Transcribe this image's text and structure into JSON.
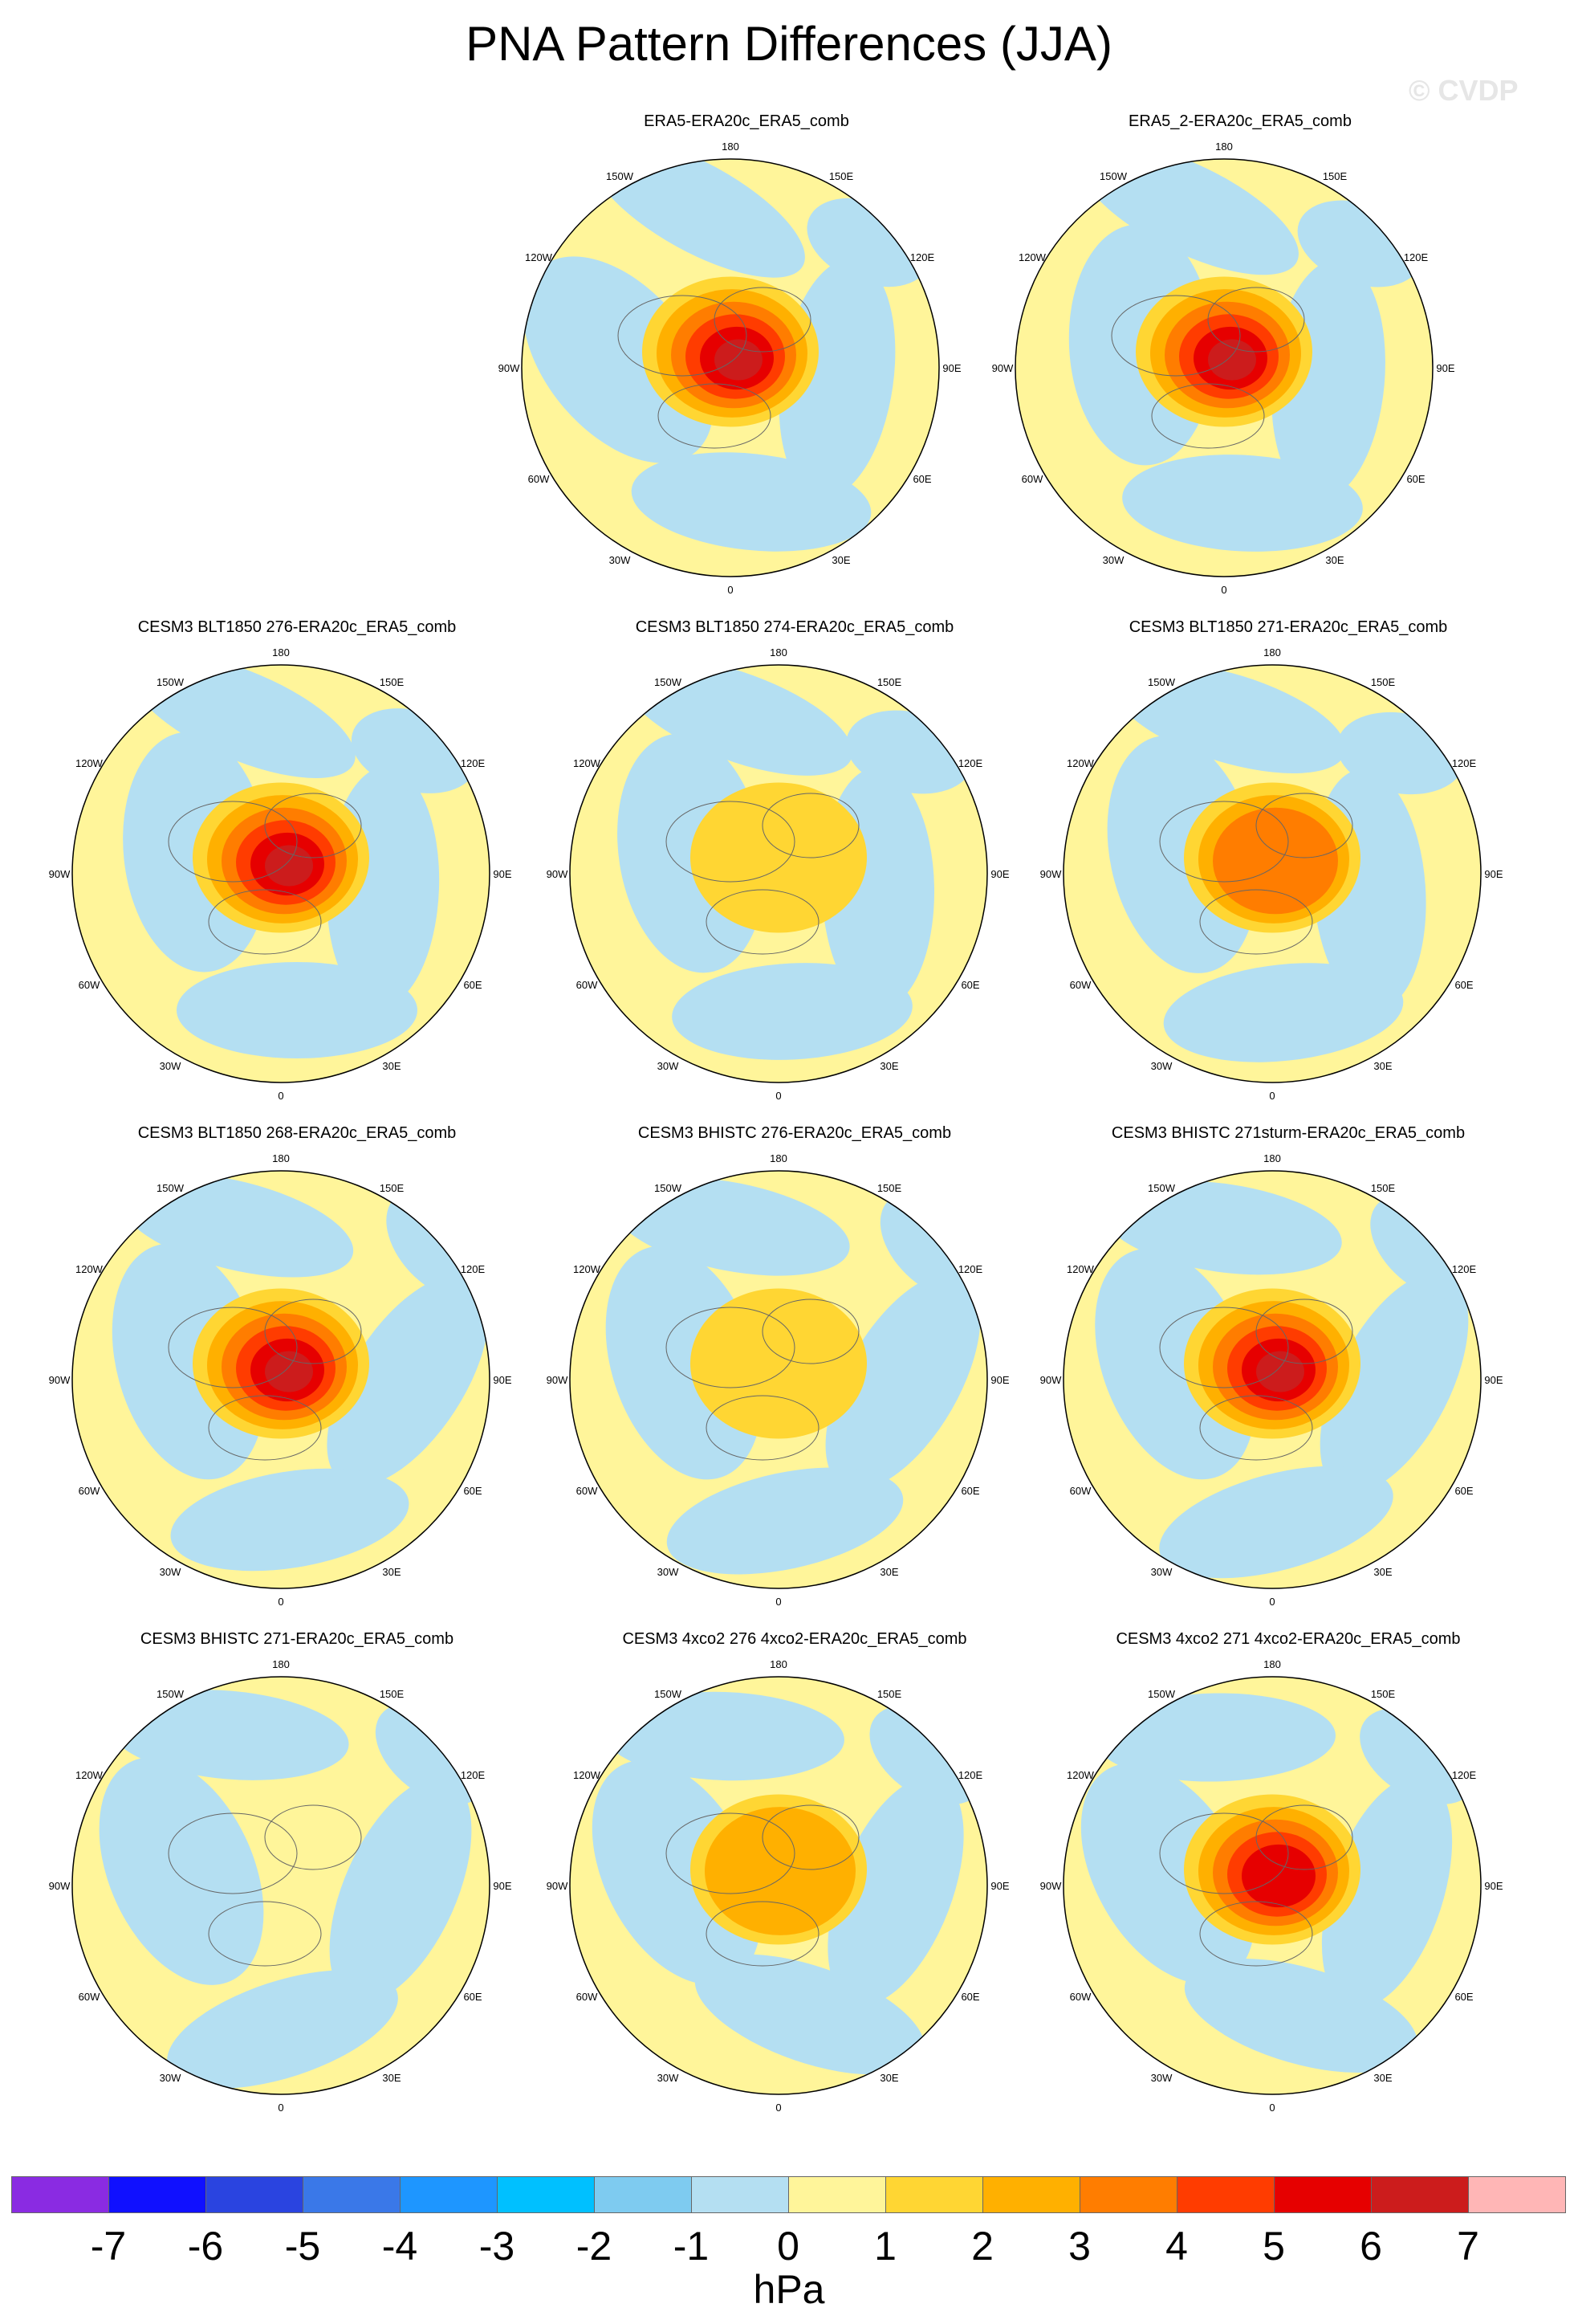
{
  "title": "PNA Pattern Differences (JJA)",
  "watermark": "© CVDP",
  "chart_data": {
    "type": "heatmap",
    "projection": "north polar stereographic",
    "title": "PNA Pattern Differences (JJA)",
    "units": "hPa",
    "contour_levels": [
      -7,
      -6,
      -5,
      -4,
      -3,
      -2,
      -1,
      0,
      1,
      2,
      3,
      4,
      5,
      6,
      7
    ],
    "colors": [
      "#8a2be2",
      "#1010ff",
      "#2a44e0",
      "#3a78e8",
      "#1e96ff",
      "#00c0ff",
      "#7ecbf0",
      "#b4dff2",
      "#fff59a",
      "#ffd633",
      "#ffb000",
      "#ff7d00",
      "#ff3c00",
      "#e60000",
      "#cc1c1c",
      "#ffb6b6"
    ],
    "longitude_labels": [
      "180",
      "150E",
      "120E",
      "90E",
      "60E",
      "30E",
      "0",
      "30W",
      "60W",
      "90W",
      "120W",
      "150W"
    ],
    "panels": [
      {
        "label": "ERA5-ERA20c_ERA5_comb",
        "center_max_hPa": 6
      },
      {
        "label": "ERA5_2-ERA20c_ERA5_comb",
        "center_max_hPa": 6
      },
      {
        "label": "CESM3 BLT1850 276-ERA20c_ERA5_comb",
        "center_max_hPa": 6
      },
      {
        "label": "CESM3 BLT1850 274-ERA20c_ERA5_comb",
        "center_max_hPa": 1
      },
      {
        "label": "CESM3 BLT1850 271-ERA20c_ERA5_comb",
        "center_max_hPa": 3
      },
      {
        "label": "CESM3 BLT1850 268-ERA20c_ERA5_comb",
        "center_max_hPa": 6
      },
      {
        "label": "CESM3 BHISTC 276-ERA20c_ERA5_comb",
        "center_max_hPa": 1
      },
      {
        "label": "CESM3 BHISTC 271sturm-ERA20c_ERA5_comb",
        "center_max_hPa": 6
      },
      {
        "label": "CESM3 BHISTC 271-ERA20c_ERA5_comb",
        "center_max_hPa": 0
      },
      {
        "label": "CESM3 4xco2 276 4xco2-ERA20c_ERA5_comb",
        "center_max_hPa": 2
      },
      {
        "label": "CESM3 4xco2 271 4xco2-ERA20c_ERA5_comb",
        "center_max_hPa": 5
      }
    ]
  }
}
